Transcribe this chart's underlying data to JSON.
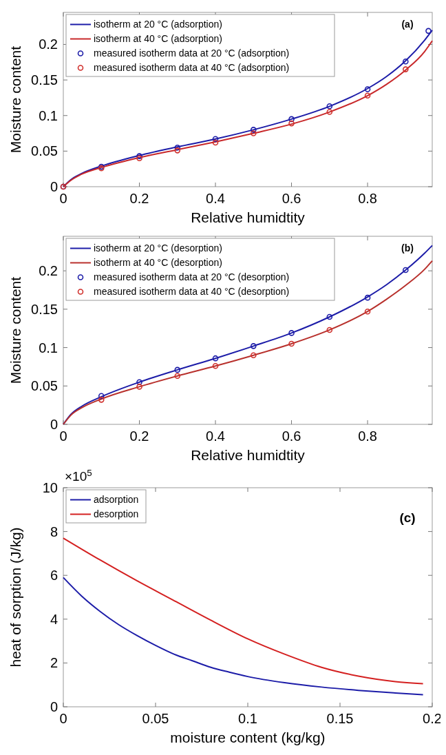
{
  "chart_data": [
    {
      "type": "line",
      "xlabel": "Relative humidtity",
      "ylabel": "Moisture content",
      "xlim": [
        0,
        0.97
      ],
      "ylim": [
        0,
        0.245
      ],
      "xticks": [
        0,
        0.2,
        0.4,
        0.6,
        0.8
      ],
      "yticks": [
        0,
        0.05,
        0.1,
        0.15,
        0.2
      ],
      "legend": "top left",
      "grid": false,
      "annotations": [
        "(a)"
      ],
      "series": [
        {
          "name": "isotherm at 20 °C (adsorption)",
          "type": "line",
          "color": "#1c1ca8",
          "x": [
            0,
            0.02,
            0.05,
            0.1,
            0.2,
            0.3,
            0.4,
            0.5,
            0.6,
            0.7,
            0.8,
            0.85,
            0.9,
            0.95,
            0.97
          ],
          "values": [
            0,
            0.01,
            0.019,
            0.029,
            0.044,
            0.056,
            0.067,
            0.08,
            0.095,
            0.113,
            0.138,
            0.155,
            0.177,
            0.206,
            0.22
          ]
        },
        {
          "name": "isotherm at 40 °C (adsorption)",
          "type": "line",
          "color": "#c8282a",
          "x": [
            0,
            0.02,
            0.05,
            0.1,
            0.2,
            0.3,
            0.4,
            0.5,
            0.6,
            0.7,
            0.8,
            0.85,
            0.9,
            0.95,
            0.97
          ],
          "values": [
            0,
            0.009,
            0.018,
            0.027,
            0.041,
            0.052,
            0.063,
            0.075,
            0.088,
            0.105,
            0.128,
            0.144,
            0.164,
            0.19,
            0.205
          ]
        },
        {
          "name": "measured isotherm data at 20 °C (adsorption)",
          "type": "scatter",
          "marker": "circle",
          "color": "#1c1ca8",
          "x": [
            0,
            0.1,
            0.2,
            0.3,
            0.4,
            0.5,
            0.6,
            0.7,
            0.8,
            0.9,
            0.96
          ],
          "values": [
            0,
            0.028,
            0.043,
            0.055,
            0.067,
            0.08,
            0.095,
            0.113,
            0.137,
            0.176,
            0.219
          ]
        },
        {
          "name": "measured isotherm data at 40 °C (adsorption)",
          "type": "scatter",
          "marker": "circle",
          "color": "#d0302c",
          "x": [
            0,
            0.1,
            0.2,
            0.3,
            0.4,
            0.5,
            0.6,
            0.7,
            0.8,
            0.9
          ],
          "values": [
            0,
            0.026,
            0.04,
            0.051,
            0.062,
            0.075,
            0.089,
            0.105,
            0.128,
            0.165
          ]
        }
      ]
    },
    {
      "type": "line",
      "xlabel": "Relative humidtity",
      "ylabel": "Moisture content",
      "xlim": [
        0,
        0.97
      ],
      "ylim": [
        0,
        0.245
      ],
      "xticks": [
        0,
        0.2,
        0.4,
        0.6,
        0.8
      ],
      "yticks": [
        0,
        0.05,
        0.1,
        0.15,
        0.2
      ],
      "legend": "top left",
      "grid": false,
      "annotations": [
        "(b)"
      ],
      "series": [
        {
          "name": "isotherm at 20 °C (desorption)",
          "type": "line",
          "color": "#1c1ca8",
          "x": [
            0,
            0.02,
            0.05,
            0.1,
            0.2,
            0.3,
            0.4,
            0.5,
            0.6,
            0.7,
            0.8,
            0.85,
            0.9,
            0.95,
            0.97
          ],
          "values": [
            0,
            0.013,
            0.024,
            0.036,
            0.055,
            0.071,
            0.086,
            0.102,
            0.119,
            0.14,
            0.166,
            0.182,
            0.201,
            0.223,
            0.233
          ]
        },
        {
          "name": "isotherm at 40 °C (desorption)",
          "type": "line",
          "color": "#b8302c",
          "x": [
            0,
            0.02,
            0.05,
            0.1,
            0.2,
            0.3,
            0.4,
            0.5,
            0.6,
            0.7,
            0.8,
            0.85,
            0.9,
            0.95,
            0.97
          ],
          "values": [
            0,
            0.012,
            0.022,
            0.033,
            0.049,
            0.063,
            0.076,
            0.09,
            0.105,
            0.123,
            0.147,
            0.163,
            0.181,
            0.202,
            0.213
          ]
        },
        {
          "name": "measured isotherm data at 20 °C (desorption)",
          "type": "scatter",
          "marker": "circle",
          "color": "#1c1ca8",
          "x": [
            0.1,
            0.2,
            0.3,
            0.4,
            0.5,
            0.6,
            0.7,
            0.8,
            0.9
          ],
          "values": [
            0.037,
            0.055,
            0.071,
            0.086,
            0.102,
            0.119,
            0.14,
            0.165,
            0.201
          ]
        },
        {
          "name": "measured isotherm data at 40 °C (desorption)",
          "type": "scatter",
          "marker": "circle",
          "color": "#d0302c",
          "x": [
            0.1,
            0.2,
            0.3,
            0.4,
            0.5,
            0.6,
            0.7,
            0.8
          ],
          "values": [
            0.032,
            0.049,
            0.063,
            0.076,
            0.09,
            0.105,
            0.123,
            0.147
          ]
        }
      ]
    },
    {
      "type": "line",
      "xlabel": "moisture content (kg/kg)",
      "ylabel": "heat of sorption (J/kg)",
      "xlim": [
        0,
        0.2
      ],
      "ylim": [
        0,
        10
      ],
      "xticks": [
        0,
        0.05,
        0.1,
        0.15,
        0.2
      ],
      "yticks": [
        0,
        2,
        4,
        6,
        8,
        10
      ],
      "legend": "top left",
      "grid": false,
      "annotations": [
        "×10$^{5}$",
        "(c)"
      ],
      "series": [
        {
          "name": "adsorption",
          "type": "line",
          "color": "#1c1ca8",
          "x": [
            0,
            0.01,
            0.02,
            0.03,
            0.04,
            0.05,
            0.06,
            0.07,
            0.08,
            0.09,
            0.1,
            0.12,
            0.14,
            0.16,
            0.18,
            0.195
          ],
          "values": [
            5.9,
            5.05,
            4.35,
            3.75,
            3.25,
            2.8,
            2.4,
            2.1,
            1.8,
            1.58,
            1.38,
            1.1,
            0.9,
            0.75,
            0.63,
            0.55
          ]
        },
        {
          "name": "desorption",
          "type": "line",
          "color": "#d42020",
          "x": [
            0,
            0.02,
            0.04,
            0.06,
            0.08,
            0.1,
            0.12,
            0.14,
            0.16,
            0.18,
            0.195
          ],
          "values": [
            7.7,
            6.7,
            5.75,
            4.85,
            3.95,
            3.1,
            2.4,
            1.8,
            1.4,
            1.15,
            1.05
          ]
        }
      ]
    }
  ]
}
